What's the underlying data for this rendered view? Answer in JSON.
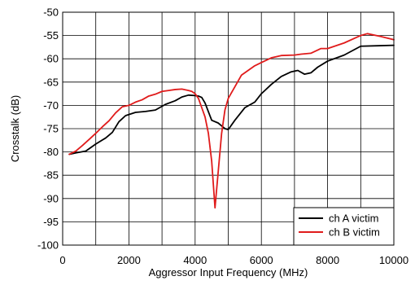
{
  "chart_data": {
    "type": "line",
    "title": "",
    "xlabel": "Aggressor Input Frequency (MHz)",
    "ylabel": "Crosstalk (dB)",
    "xlim": [
      0,
      10000
    ],
    "ylim": [
      -100,
      -50
    ],
    "xticks": [
      0,
      2000,
      4000,
      6000,
      8000,
      10000
    ],
    "yticks": [
      -50,
      -55,
      -60,
      -65,
      -70,
      -75,
      -80,
      -85,
      -90,
      -95,
      -100
    ],
    "grid": true,
    "legend_position": "bottom-right",
    "series": [
      {
        "name": "ch A victim",
        "color": "#000000",
        "x": [
          200,
          400,
          700,
          1000,
          1300,
          1500,
          1700,
          1900,
          2200,
          2500,
          2800,
          3100,
          3400,
          3600,
          3800,
          4000,
          4100,
          4200,
          4300,
          4500,
          4700,
          4900,
          5000,
          5200,
          5500,
          5800,
          6000,
          6300,
          6600,
          6900,
          7100,
          7300,
          7500,
          7700,
          8000,
          8500,
          9000,
          9500,
          10000
        ],
        "y": [
          -80.5,
          -80.2,
          -79.8,
          -78.3,
          -77.0,
          -75.8,
          -73.5,
          -72.2,
          -71.5,
          -71.3,
          -71.0,
          -69.8,
          -69.0,
          -68.2,
          -67.8,
          -67.9,
          -68.0,
          -68.3,
          -69.5,
          -73.2,
          -73.8,
          -75.0,
          -75.2,
          -73.2,
          -70.5,
          -69.3,
          -67.5,
          -65.5,
          -63.8,
          -62.8,
          -62.5,
          -63.3,
          -63.0,
          -61.8,
          -60.5,
          -59.2,
          -57.3,
          -57.2,
          -57.1
        ]
      },
      {
        "name": "ch B victim",
        "color": "#e01b1b",
        "x": [
          200,
          400,
          600,
          800,
          1000,
          1200,
          1400,
          1600,
          1800,
          2000,
          2200,
          2400,
          2600,
          2800,
          3000,
          3200,
          3400,
          3600,
          3800,
          3900,
          4000,
          4100,
          4200,
          4300,
          4400,
          4500,
          4550,
          4600,
          4700,
          4800,
          4900,
          5000,
          5200,
          5400,
          5600,
          5800,
          6000,
          6300,
          6600,
          7000,
          7200,
          7500,
          7800,
          8000,
          8500,
          9000,
          9200,
          9600,
          10000
        ],
        "y": [
          -80.5,
          -79.8,
          -78.6,
          -77.3,
          -76.0,
          -74.6,
          -73.3,
          -71.6,
          -70.3,
          -70.0,
          -69.3,
          -68.8,
          -68.0,
          -67.6,
          -67.0,
          -66.8,
          -66.6,
          -66.5,
          -66.8,
          -67.0,
          -67.5,
          -68.5,
          -70.5,
          -72.5,
          -76.0,
          -82.0,
          -87.0,
          -92.0,
          -84.0,
          -76.0,
          -71.0,
          -68.5,
          -66.0,
          -63.5,
          -62.5,
          -61.5,
          -60.8,
          -59.8,
          -59.3,
          -59.2,
          -59.0,
          -58.8,
          -57.8,
          -57.8,
          -56.6,
          -55.0,
          -54.6,
          -55.2,
          -55.9
        ]
      }
    ]
  },
  "colors": {
    "background": "#ffffff",
    "grid": "#000000",
    "axis": "#000000"
  }
}
